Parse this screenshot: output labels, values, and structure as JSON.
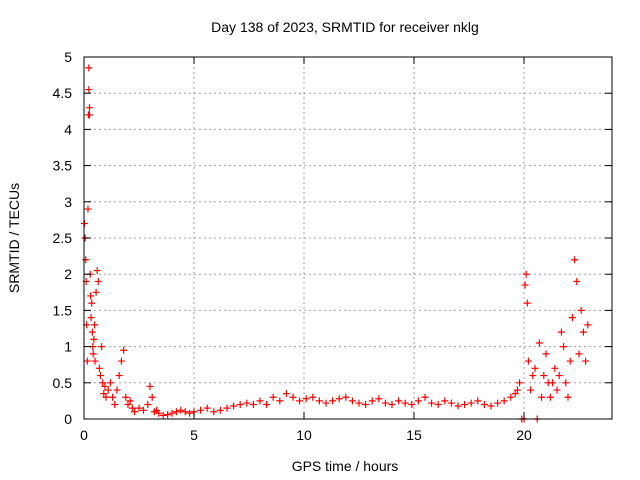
{
  "chart_data": {
    "type": "scatter",
    "title": "Day 138 of 2023, SRMTID for receiver nklg",
    "xlabel": "GPS time / hours",
    "ylabel": "SRMTID / TECUs",
    "xlim": [
      0,
      24
    ],
    "ylim": [
      0,
      5
    ],
    "xticks": [
      0,
      5,
      10,
      15,
      20
    ],
    "xtick_labels": [
      "0",
      "5",
      "10",
      "15",
      "20"
    ],
    "yticks": [
      0,
      0.5,
      1,
      1.5,
      2,
      2.5,
      3,
      3.5,
      4,
      4.5,
      5
    ],
    "ytick_labels": [
      "0",
      "0.5",
      "1",
      "1.5",
      "2",
      "2.5",
      "3",
      "3.5",
      "4",
      "4.5",
      "5"
    ],
    "grid": true,
    "marker": "+",
    "color": "#ff0000",
    "series": [
      {
        "name": "SRMTID",
        "x": [
          0.02,
          0.05,
          0.08,
          0.1,
          0.12,
          0.15,
          0.18,
          0.2,
          0.22,
          0.22,
          0.25,
          0.25,
          0.28,
          0.3,
          0.32,
          0.35,
          0.38,
          0.4,
          0.42,
          0.45,
          0.48,
          0.5,
          0.55,
          0.6,
          0.65,
          0.7,
          0.75,
          0.8,
          0.85,
          0.9,
          0.95,
          1.0,
          1.1,
          1.2,
          1.3,
          1.4,
          1.5,
          1.6,
          1.7,
          1.8,
          1.9,
          2.0,
          2.1,
          2.2,
          2.3,
          2.5,
          2.7,
          2.9,
          3.0,
          3.1,
          3.2,
          3.3,
          3.4,
          3.6,
          3.8,
          4.0,
          4.2,
          4.4,
          4.6,
          4.8,
          5.0,
          5.3,
          5.6,
          5.9,
          6.2,
          6.5,
          6.8,
          7.1,
          7.4,
          7.7,
          8.0,
          8.3,
          8.6,
          8.9,
          9.2,
          9.5,
          9.8,
          10.1,
          10.4,
          10.7,
          11.0,
          11.3,
          11.6,
          11.9,
          12.2,
          12.5,
          12.8,
          13.1,
          13.4,
          13.7,
          14.0,
          14.3,
          14.6,
          14.9,
          15.2,
          15.5,
          15.8,
          16.1,
          16.4,
          16.7,
          17.0,
          17.3,
          17.6,
          17.9,
          18.2,
          18.5,
          18.8,
          19.1,
          19.4,
          19.6,
          19.7,
          19.8,
          19.9,
          20.0,
          20.05,
          20.1,
          20.15,
          20.2,
          20.3,
          20.4,
          20.5,
          20.6,
          20.7,
          20.8,
          20.9,
          21.0,
          21.1,
          21.2,
          21.3,
          21.4,
          21.5,
          21.6,
          21.7,
          21.8,
          21.9,
          22.0,
          22.1,
          22.2,
          22.3,
          22.4,
          22.5,
          22.6,
          22.7,
          22.8,
          22.9
        ],
        "y": [
          2.7,
          2.5,
          2.2,
          1.9,
          1.3,
          0.8,
          2.9,
          4.2,
          4.85,
          4.55,
          4.3,
          4.2,
          2.0,
          1.7,
          1.4,
          1.6,
          1.2,
          1.0,
          0.9,
          1.1,
          1.3,
          0.8,
          1.75,
          2.05,
          1.9,
          0.7,
          0.6,
          1.0,
          0.5,
          0.35,
          0.45,
          0.3,
          0.4,
          0.5,
          0.3,
          0.2,
          0.4,
          0.6,
          0.8,
          0.95,
          0.3,
          0.2,
          0.25,
          0.15,
          0.1,
          0.15,
          0.12,
          0.2,
          0.45,
          0.3,
          0.1,
          0.12,
          0.08,
          0.05,
          0.06,
          0.08,
          0.1,
          0.12,
          0.1,
          0.08,
          0.1,
          0.12,
          0.15,
          0.1,
          0.12,
          0.15,
          0.18,
          0.2,
          0.22,
          0.2,
          0.25,
          0.2,
          0.3,
          0.25,
          0.35,
          0.3,
          0.25,
          0.28,
          0.3,
          0.25,
          0.22,
          0.25,
          0.28,
          0.3,
          0.25,
          0.22,
          0.2,
          0.25,
          0.28,
          0.22,
          0.2,
          0.25,
          0.22,
          0.2,
          0.25,
          0.3,
          0.22,
          0.2,
          0.25,
          0.22,
          0.18,
          0.2,
          0.22,
          0.25,
          0.2,
          0.18,
          0.22,
          0.25,
          0.3,
          0.35,
          0.4,
          0.5,
          0.0,
          0.0,
          1.85,
          2.0,
          1.6,
          0.8,
          0.4,
          0.6,
          0.7,
          0.0,
          1.05,
          0.3,
          0.6,
          0.9,
          0.5,
          0.3,
          0.5,
          0.7,
          0.4,
          0.6,
          1.2,
          1.0,
          0.5,
          0.3,
          0.8,
          1.4,
          2.2,
          1.9,
          0.9,
          1.5,
          1.2,
          0.8,
          1.3
        ]
      }
    ]
  }
}
